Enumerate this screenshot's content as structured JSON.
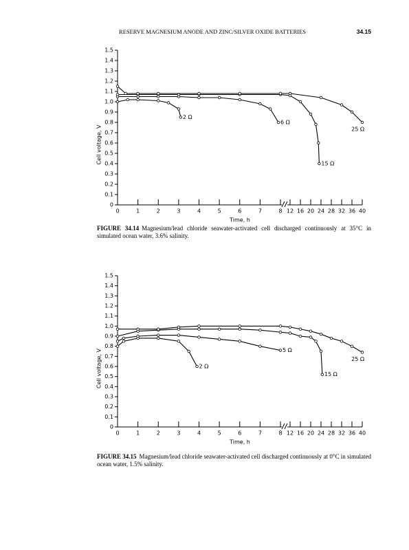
{
  "header": {
    "title": "RESERVE MAGNESIUM ANODE AND ZINC/SILVER OXIDE BATTERIES",
    "page": "34.15"
  },
  "chart_data": [
    {
      "type": "line",
      "xlabel": "Time, h",
      "ylabel": "Cell voltage, V",
      "xlim": [
        0,
        40
      ],
      "xbreak": [
        8,
        12
      ],
      "ylim": [
        0,
        1.5
      ],
      "xticks": [
        0,
        1,
        2,
        3,
        4,
        5,
        6,
        7,
        8,
        12,
        16,
        20,
        24,
        28,
        32,
        36,
        40
      ],
      "yticks": [
        0,
        0.1,
        0.2,
        0.3,
        0.4,
        0.5,
        0.6,
        0.7,
        0.8,
        0.9,
        {
          "value": 1,
          "label": "1.0"
        },
        1.1,
        1.2,
        1.3,
        1.4,
        1.5
      ],
      "series": [
        {
          "name": "2 Ω",
          "color": "#000000",
          "x": [
            0,
            0.5,
            1,
            2,
            2.5,
            3,
            3.1
          ],
          "values": [
            1.0,
            1.02,
            1.02,
            1.01,
            0.99,
            0.93,
            0.85
          ]
        },
        {
          "name": "6 Ω",
          "color": "#000000",
          "x": [
            0,
            1,
            2,
            3,
            4,
            5,
            6,
            7,
            7.5,
            7.9
          ],
          "values": [
            1.05,
            1.05,
            1.05,
            1.05,
            1.04,
            1.04,
            1.02,
            0.98,
            0.93,
            0.8
          ]
        },
        {
          "name": "15 Ω",
          "color": "#000000",
          "x": [
            0,
            1,
            2,
            3,
            4,
            6,
            8,
            12,
            16,
            20,
            22,
            23,
            23.3
          ],
          "values": [
            1.07,
            1.07,
            1.07,
            1.07,
            1.07,
            1.07,
            1.07,
            1.06,
            1.0,
            0.88,
            0.78,
            0.6,
            0.4
          ]
        },
        {
          "name": "25 Ω",
          "color": "#000000",
          "x": [
            0,
            0.4,
            1,
            2,
            4,
            6,
            8,
            12,
            24,
            32,
            36,
            40
          ],
          "values": [
            1.15,
            1.08,
            1.08,
            1.08,
            1.08,
            1.08,
            1.08,
            1.08,
            1.04,
            0.97,
            0.9,
            0.8
          ]
        }
      ],
      "caption": {
        "label": "FIGURE 34.14",
        "text": "Magnesium/lead chloride seawater-activated cell discharged continuously at 35°C in simulated ocean water, 3.6% salinity."
      }
    },
    {
      "type": "line",
      "xlabel": "Time, h",
      "ylabel": "Cell voltage, V",
      "xlim": [
        0,
        40
      ],
      "xbreak": [
        8,
        12
      ],
      "ylim": [
        0,
        1.5
      ],
      "xticks": [
        0,
        1,
        2,
        3,
        4,
        5,
        6,
        7,
        8,
        12,
        16,
        20,
        24,
        28,
        32,
        36,
        40
      ],
      "yticks": [
        0,
        0.1,
        0.2,
        0.3,
        0.4,
        0.5,
        0.6,
        0.7,
        0.8,
        0.9,
        {
          "value": 1,
          "label": "1.0"
        },
        1.1,
        1.2,
        1.3,
        1.4,
        1.5
      ],
      "series": [
        {
          "name": "2 Ω",
          "color": "#000000",
          "x": [
            0,
            0.3,
            1,
            2,
            3,
            3.5,
            3.9
          ],
          "values": [
            0.8,
            0.85,
            0.88,
            0.88,
            0.85,
            0.75,
            0.6
          ]
        },
        {
          "name": "5 Ω",
          "color": "#000000",
          "x": [
            0,
            0.3,
            1,
            2,
            3,
            4,
            5,
            6,
            7,
            8
          ],
          "values": [
            0.85,
            0.88,
            0.9,
            0.91,
            0.91,
            0.89,
            0.87,
            0.85,
            0.8,
            0.76
          ]
        },
        {
          "name": "15 Ω",
          "color": "#000000",
          "x": [
            0,
            1,
            2,
            3,
            4,
            5,
            6,
            7,
            8,
            12,
            16,
            20,
            22,
            24,
            24.5
          ],
          "values": [
            0.9,
            0.95,
            0.96,
            0.97,
            0.97,
            0.97,
            0.97,
            0.96,
            0.94,
            0.93,
            0.9,
            0.89,
            0.85,
            0.75,
            0.52
          ]
        },
        {
          "name": "25 Ω",
          "color": "#000000",
          "x": [
            0,
            1,
            2,
            3,
            4,
            6,
            8,
            12,
            16,
            20,
            24,
            28,
            32,
            36,
            40
          ],
          "values": [
            0.97,
            0.97,
            0.97,
            0.99,
            1.0,
            1.0,
            1.0,
            0.99,
            0.97,
            0.95,
            0.92,
            0.88,
            0.85,
            0.8,
            0.74
          ]
        }
      ],
      "caption": {
        "label": "FIGURE 34.15",
        "text": "Magnesium/lead chloride seawater-activated cell discharged continuously at 0°C in simulated ocean water, 1.5% salinity."
      }
    }
  ]
}
